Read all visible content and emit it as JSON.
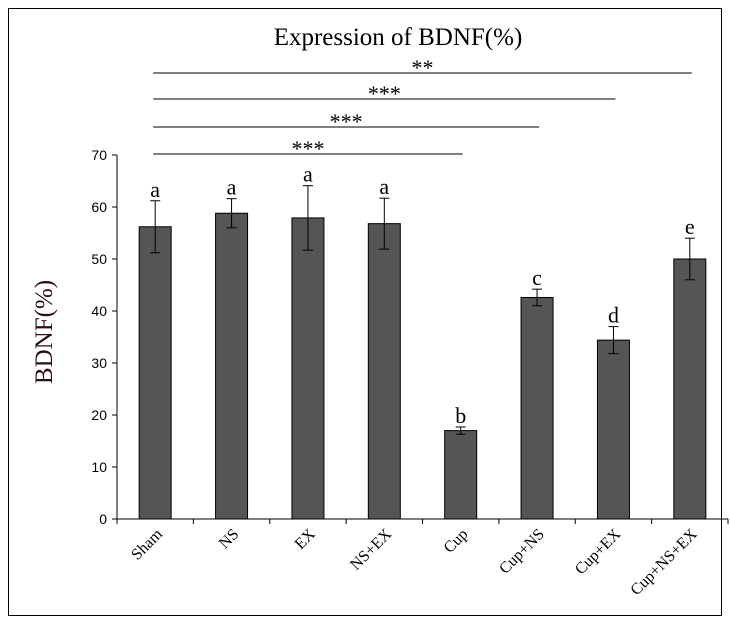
{
  "chart_data": {
    "type": "bar",
    "title": "Expression of BDNF(%)",
    "xlabel": "",
    "ylabel": "BDNF(%)",
    "ylim": [
      0,
      70
    ],
    "yticks": [
      0,
      10,
      20,
      30,
      40,
      50,
      60,
      70
    ],
    "grid": false,
    "legend": "none",
    "bar_color": "#555555",
    "categories": [
      "Sham",
      "NS",
      "EX",
      "NS+EX",
      "Cup",
      "Cup+NS",
      "Cup+EX",
      "Cup+NS+EX"
    ],
    "values": [
      56.2,
      58.8,
      57.9,
      56.8,
      17.0,
      42.6,
      34.4,
      50.0
    ],
    "errors": [
      5.0,
      2.8,
      6.2,
      4.9,
      0.7,
      1.6,
      2.6,
      4.0
    ],
    "group_letters": [
      "a",
      "a",
      "a",
      "a",
      "b",
      "c",
      "d",
      "e"
    ],
    "comparisons": [
      {
        "from": "Sham",
        "to": "Cup+NS+EX",
        "label": "**"
      },
      {
        "from": "Sham",
        "to": "Cup+EX",
        "label": "***"
      },
      {
        "from": "Sham",
        "to": "Cup+NS",
        "label": "***"
      },
      {
        "from": "Sham",
        "to": "Cup",
        "label": "***"
      }
    ]
  }
}
